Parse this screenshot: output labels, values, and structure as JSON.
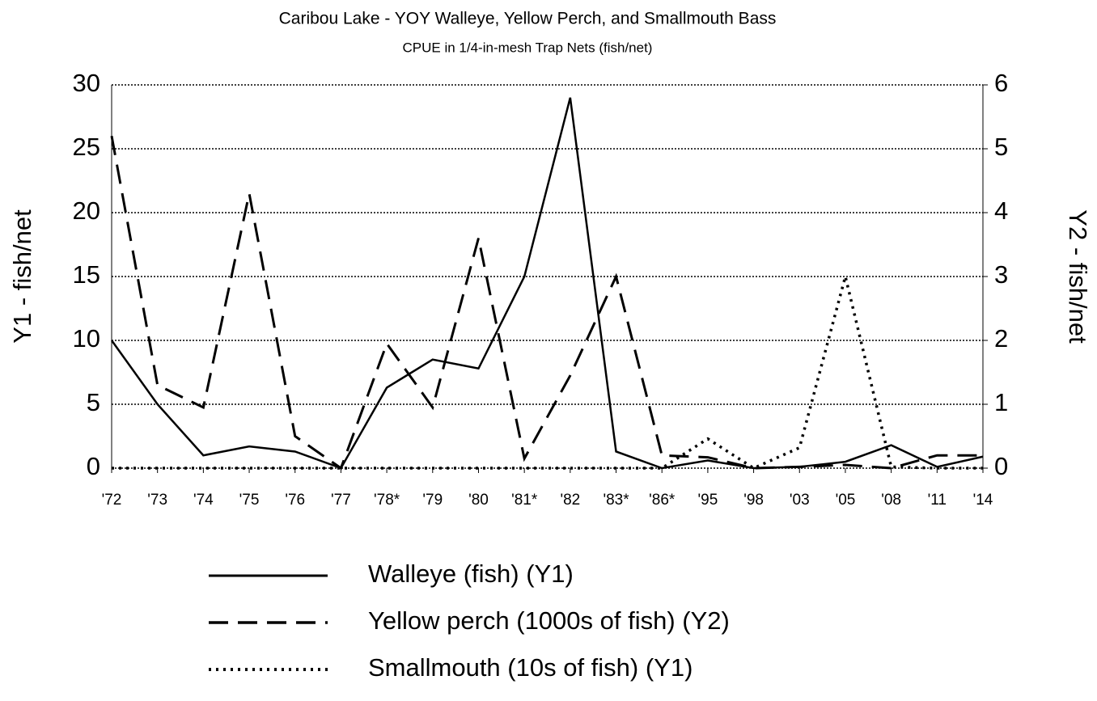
{
  "chart_data": {
    "type": "line",
    "title": "Caribou Lake - YOY Walleye, Yellow Perch, and Smallmouth Bass",
    "subtitle": "CPUE in 1/4-in-mesh Trap Nets (fish/net)",
    "y_label": "Y1 - fish/net",
    "y2_label": "Y2 - fish/net",
    "categories": [
      "'72",
      "'73",
      "'74",
      "'75",
      "'76",
      "'77",
      "'78*",
      "'79",
      "'80",
      "'81*",
      "'82",
      "'83*",
      "'86*",
      "'95",
      "'98",
      "'03",
      "'05",
      "'08",
      "'11",
      "'14"
    ],
    "ylim": [
      0,
      30
    ],
    "yticks": [
      0,
      5,
      10,
      15,
      20,
      25,
      30
    ],
    "y2lim": [
      0,
      6
    ],
    "y2ticks": [
      0,
      1,
      2,
      3,
      4,
      5,
      6
    ],
    "grid": true,
    "series": [
      {
        "name": "Walleye (fish) (Y1)",
        "color": "#000000",
        "dash": "solid",
        "values": [
          10,
          5,
          1,
          1.7,
          1.3,
          0,
          6.3,
          8.5,
          7.8,
          15,
          29,
          1.3,
          0,
          0.6,
          0,
          0.1,
          0.5,
          1.8,
          0.1,
          0.9
        ]
      },
      {
        "name": "Yellow perch (1000s of fish) (Y2)",
        "color": "#000000",
        "dash": "dashed",
        "axis": "y2",
        "values": [
          5.2,
          1.3,
          0.95,
          4.3,
          0.5,
          0,
          1.95,
          0.95,
          3.6,
          0.15,
          1.45,
          3.0,
          0.2,
          0.17,
          0,
          0.02,
          0.05,
          0,
          0.2,
          0.2
        ]
      },
      {
        "name": "Smallmouth (10s of fish) (Y1)",
        "color": "#000000",
        "dash": "dotted",
        "values": [
          0,
          0,
          0,
          0,
          0,
          0,
          0,
          0,
          0,
          0,
          0,
          0,
          0,
          2.3,
          0,
          1.6,
          15,
          0.1,
          0,
          0
        ]
      }
    ]
  }
}
